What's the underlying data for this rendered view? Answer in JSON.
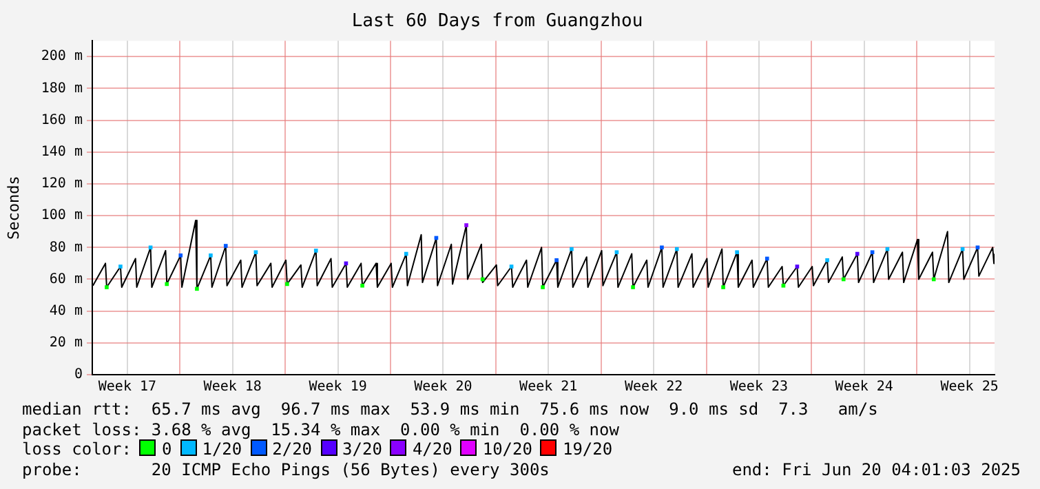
{
  "chart_data": {
    "type": "line",
    "title": "Last 60 Days from Guangzhou",
    "ylabel": "Seconds",
    "legend_title": "loss color:",
    "legend": "bottom",
    "grid": true,
    "xlim": [
      "2025-04-21T04:01",
      "2025-06-20T04:01"
    ],
    "xticks": [
      {
        "value": "2025-04-23T12:00",
        "label": "Week 17"
      },
      {
        "value": "2025-04-27T00:00",
        "label": null
      },
      {
        "value": "2025-04-30T12:00",
        "label": "Week 18"
      },
      {
        "value": "2025-05-04T00:00",
        "label": null
      },
      {
        "value": "2025-05-07T12:00",
        "label": "Week 19"
      },
      {
        "value": "2025-05-11T00:00",
        "label": null
      },
      {
        "value": "2025-05-14T12:00",
        "label": "Week 20"
      },
      {
        "value": "2025-05-18T00:00",
        "label": null
      },
      {
        "value": "2025-05-21T12:00",
        "label": "Week 21"
      },
      {
        "value": "2025-05-25T00:00",
        "label": null
      },
      {
        "value": "2025-05-28T12:00",
        "label": "Week 22"
      },
      {
        "value": "2025-06-01T00:00",
        "label": null
      },
      {
        "value": "2025-06-04T12:00",
        "label": "Week 23"
      },
      {
        "value": "2025-06-08T00:00",
        "label": null
      },
      {
        "value": "2025-06-11T12:00",
        "label": "Week 24"
      },
      {
        "value": "2025-06-15T00:00",
        "label": null
      },
      {
        "value": "2025-06-18T12:00",
        "label": "Week 25"
      }
    ],
    "ylim": [
      0,
      210
    ],
    "yticks": [
      0,
      {
        "value": 20,
        "label": "20 m"
      },
      {
        "value": 40,
        "label": "40 m"
      },
      {
        "value": 60,
        "label": "60 m"
      },
      {
        "value": 80,
        "label": "80 m"
      },
      {
        "value": 100,
        "label": "100 m"
      },
      {
        "value": 120,
        "label": "120 m"
      },
      {
        "value": 140,
        "label": "140 m"
      },
      {
        "value": 160,
        "label": "160 m"
      },
      {
        "value": 180,
        "label": "180 m"
      },
      {
        "value": 200,
        "label": "200 m"
      }
    ],
    "annotations": [
      "median rtt:  65.7 ms avg  96.7 ms max  53.9 ms min  75.6 ms now  9.0 ms sd  7.3   am/s",
      "packet loss: 3.68 % avg  15.34 % max  0.00 % min  0.00 % now",
      "probe:       20 ICMP Echo Pings (56 Bytes) every 300s",
      "end: Fri Jun 20 04:01:03 2025"
    ],
    "series": [
      {
        "color": "#000000",
        "x": [
          "2025-04-21T05:00",
          "2025-04-22T01:00",
          "2025-04-22T03:00",
          "2025-04-23T01:00",
          "2025-04-23T03:00",
          "2025-04-24T01:00",
          "2025-04-24T03:00",
          "2025-04-25T01:00",
          "2025-04-25T03:00",
          "2025-04-26T01:00",
          "2025-04-26T03:00",
          "2025-04-27T01:00",
          "2025-04-27T03:00",
          "2025-04-28T01:00",
          "2025-04-28T03:00",
          "2025-04-29T01:00",
          "2025-04-29T03:00",
          "2025-04-30T01:00",
          "2025-04-30T03:00",
          "2025-05-01T01:00",
          "2025-05-01T03:00",
          "2025-05-02T01:00",
          "2025-05-02T03:00",
          "2025-05-03T01:00",
          "2025-05-03T03:00",
          "2025-05-04T01:00",
          "2025-05-04T03:00",
          "2025-05-05T01:00",
          "2025-05-05T03:00",
          "2025-05-06T01:00",
          "2025-05-06T03:00",
          "2025-05-07T01:00",
          "2025-05-07T03:00",
          "2025-05-08T01:00",
          "2025-05-08T03:00",
          "2025-05-09T01:00",
          "2025-05-09T03:00",
          "2025-05-10T01:00",
          "2025-05-10T03:00",
          "2025-05-11T01:00",
          "2025-05-11T03:00",
          "2025-05-12T01:00",
          "2025-05-12T03:00",
          "2025-05-13T01:00",
          "2025-05-13T03:00",
          "2025-05-14T01:00",
          "2025-05-14T03:00",
          "2025-05-15T01:00",
          "2025-05-15T03:00",
          "2025-05-16T01:00",
          "2025-05-16T03:00",
          "2025-05-17T01:00",
          "2025-05-17T03:00",
          "2025-05-18T01:00",
          "2025-05-18T03:00",
          "2025-05-19T01:00",
          "2025-05-19T03:00",
          "2025-05-20T01:00",
          "2025-05-20T03:00",
          "2025-05-21T01:00",
          "2025-05-21T03:00",
          "2025-05-22T01:00",
          "2025-05-22T03:00",
          "2025-05-23T01:00",
          "2025-05-23T03:00",
          "2025-05-24T01:00",
          "2025-05-24T03:00",
          "2025-05-25T01:00",
          "2025-05-25T03:00",
          "2025-05-26T01:00",
          "2025-05-26T03:00",
          "2025-05-27T01:00",
          "2025-05-27T03:00",
          "2025-05-28T01:00",
          "2025-05-28T03:00",
          "2025-05-29T01:00",
          "2025-05-29T03:00",
          "2025-05-30T01:00",
          "2025-05-30T03:00",
          "2025-05-31T01:00",
          "2025-05-31T03:00",
          "2025-06-01T01:00",
          "2025-06-01T03:00",
          "2025-06-02T01:00",
          "2025-06-02T03:00",
          "2025-06-03T01:00",
          "2025-06-03T03:00",
          "2025-06-04T01:00",
          "2025-06-04T03:00",
          "2025-06-05T01:00",
          "2025-06-05T03:00",
          "2025-06-06T01:00",
          "2025-06-06T03:00",
          "2025-06-07T01:00",
          "2025-06-07T03:00",
          "2025-06-08T01:00",
          "2025-06-08T03:00",
          "2025-06-09T01:00",
          "2025-06-09T03:00",
          "2025-06-10T01:00",
          "2025-06-10T03:00",
          "2025-06-11T01:00",
          "2025-06-11T03:00",
          "2025-06-12T01:00",
          "2025-06-12T03:00",
          "2025-06-13T01:00",
          "2025-06-13T03:00",
          "2025-06-14T01:00",
          "2025-06-14T03:00",
          "2025-06-15T01:00",
          "2025-06-15T03:00",
          "2025-06-16T01:00",
          "2025-06-16T03:00",
          "2025-06-17T01:00",
          "2025-06-17T03:00",
          "2025-06-18T01:00",
          "2025-06-18T03:00",
          "2025-06-19T01:00",
          "2025-06-19T03:00",
          "2025-06-20T01:00",
          "2025-06-20T03:00",
          "2025-06-20T04:00"
        ],
        "values": [
          56,
          70,
          55,
          68,
          55,
          73,
          55,
          80,
          55,
          78,
          57,
          75,
          55,
          97,
          54,
          75,
          55,
          81,
          56,
          72,
          55,
          77,
          56,
          70,
          55,
          72,
          57,
          69,
          55,
          78,
          56,
          73,
          55,
          70,
          55,
          70,
          56,
          70,
          55,
          70,
          55,
          76,
          56,
          88,
          58,
          86,
          56,
          82,
          57,
          94,
          60,
          82,
          58,
          69,
          56,
          68,
          55,
          72,
          55,
          80,
          55,
          72,
          55,
          79,
          55,
          74,
          55,
          78,
          56,
          77,
          55,
          76,
          55,
          72,
          55,
          80,
          55,
          79,
          55,
          76,
          55,
          73,
          55,
          79,
          55,
          77,
          55,
          72,
          55,
          73,
          55,
          68,
          56,
          68,
          55,
          68,
          56,
          72,
          58,
          74,
          60,
          76,
          58,
          77,
          58,
          79,
          60,
          77,
          58,
          85,
          60,
          77,
          60,
          90,
          58,
          79,
          60,
          80,
          62,
          80,
          70,
          76
        ]
      },
      {
        "type": "scatter",
        "name": "0",
        "color": "#00ff00",
        "x": [
          "2025-04-22T03:00",
          "2025-04-26T03:00",
          "2025-04-28T03:00",
          "2025-05-04T03:00",
          "2025-05-09T03:00",
          "2025-05-17T03:00",
          "2025-05-21T03:00",
          "2025-05-27T03:00",
          "2025-06-02T03:00",
          "2025-06-06T03:00",
          "2025-06-10T03:00",
          "2025-06-16T03:00"
        ],
        "values": [
          55,
          57,
          54,
          57,
          56,
          60,
          55,
          55,
          55,
          56,
          60,
          60
        ]
      },
      {
        "type": "scatter",
        "name": "1/20",
        "color": "#00b8ff",
        "x": [
          "2025-04-23T01:00",
          "2025-04-25T01:00",
          "2025-04-29T01:00",
          "2025-05-02T01:00",
          "2025-05-06T01:00",
          "2025-05-12T01:00",
          "2025-05-19T01:00",
          "2025-05-23T01:00",
          "2025-05-26T01:00",
          "2025-05-30T01:00",
          "2025-06-03T01:00",
          "2025-06-09T01:00",
          "2025-06-13T01:00",
          "2025-06-18T01:00"
        ],
        "values": [
          68,
          80,
          75,
          77,
          78,
          76,
          68,
          79,
          77,
          79,
          77,
          72,
          79,
          79
        ]
      },
      {
        "type": "scatter",
        "name": "2/20",
        "color": "#0059ff",
        "x": [
          "2025-04-27T01:00",
          "2025-04-30T01:00",
          "2025-05-14T01:00",
          "2025-05-22T01:00",
          "2025-05-29T01:00",
          "2025-06-05T01:00",
          "2025-06-12T01:00",
          "2025-06-19T01:00"
        ],
        "values": [
          75,
          81,
          86,
          72,
          80,
          73,
          77,
          80
        ]
      },
      {
        "type": "scatter",
        "name": "3/20",
        "color": "#5500ff",
        "x": [
          "2025-05-08T01:00",
          "2025-06-07T01:00",
          "2025-06-11T01:00"
        ],
        "values": [
          70,
          68,
          76
        ]
      },
      {
        "type": "scatter",
        "name": "4/20",
        "color": "#8a00ff",
        "x": [
          "2025-05-16T01:00"
        ],
        "values": [
          94
        ]
      },
      {
        "type": "scatter",
        "name": "10/20",
        "color": "#e000ff"
      },
      {
        "type": "scatter",
        "name": "19/20",
        "color": "#ff0000"
      }
    ]
  }
}
